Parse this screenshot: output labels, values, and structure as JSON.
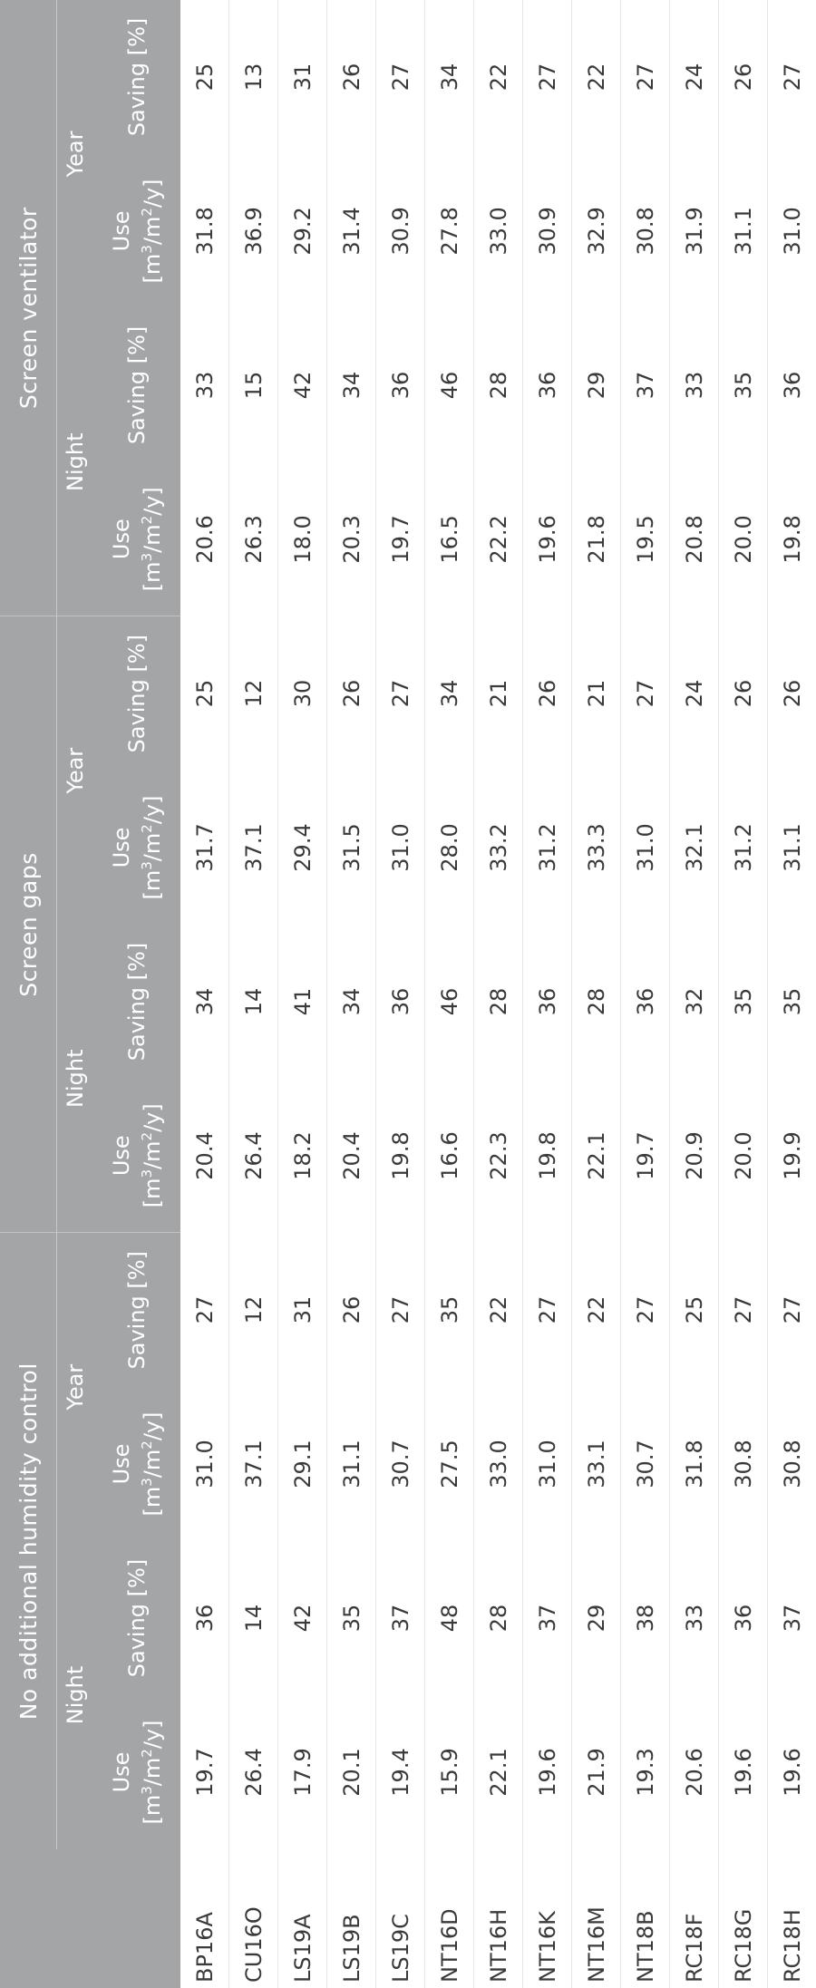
{
  "table": {
    "groups": [
      "No additional humidity control",
      "Screen gaps",
      "Screen ventilator"
    ],
    "periods": [
      "Night",
      "Year"
    ],
    "metric": {
      "use_label": "Use",
      "unit_open": "[m",
      "unit_sup1": "3",
      "unit_mid": "/m",
      "unit_sup2": "2",
      "unit_close": "/y]",
      "saving_label": "Saving [%]"
    },
    "rows": [
      {
        "site": "BP16A",
        "v": [
          "19.7",
          "36",
          "31.0",
          "27",
          "20.4",
          "34",
          "31.7",
          "25",
          "20.6",
          "33",
          "31.8",
          "25"
        ]
      },
      {
        "site": "CU16O",
        "v": [
          "26.4",
          "14",
          "37.1",
          "12",
          "26.4",
          "14",
          "37.1",
          "12",
          "26.3",
          "15",
          "36.9",
          "13"
        ]
      },
      {
        "site": "LS19A",
        "v": [
          "17.9",
          "42",
          "29.1",
          "31",
          "18.2",
          "41",
          "29.4",
          "30",
          "18.0",
          "42",
          "29.2",
          "31"
        ]
      },
      {
        "site": "LS19B",
        "v": [
          "20.1",
          "35",
          "31.1",
          "26",
          "20.4",
          "34",
          "31.5",
          "26",
          "20.3",
          "34",
          "31.4",
          "26"
        ]
      },
      {
        "site": "LS19C",
        "v": [
          "19.4",
          "37",
          "30.7",
          "27",
          "19.8",
          "36",
          "31.0",
          "27",
          "19.7",
          "36",
          "30.9",
          "27"
        ]
      },
      {
        "site": "NT16D",
        "v": [
          "15.9",
          "48",
          "27.5",
          "35",
          "16.6",
          "46",
          "28.0",
          "34",
          "16.5",
          "46",
          "27.8",
          "34"
        ]
      },
      {
        "site": "NT16H",
        "v": [
          "22.1",
          "28",
          "33.0",
          "22",
          "22.3",
          "28",
          "33.2",
          "21",
          "22.2",
          "28",
          "33.0",
          "22"
        ]
      },
      {
        "site": "NT16K",
        "v": [
          "19.6",
          "37",
          "31.0",
          "27",
          "19.8",
          "36",
          "31.2",
          "26",
          "19.6",
          "36",
          "30.9",
          "27"
        ]
      },
      {
        "site": "NT16M",
        "v": [
          "21.9",
          "29",
          "33.1",
          "22",
          "22.1",
          "28",
          "33.3",
          "21",
          "21.8",
          "29",
          "32.9",
          "22"
        ]
      },
      {
        "site": "NT18B",
        "v": [
          "19.3",
          "38",
          "30.7",
          "27",
          "19.7",
          "36",
          "31.0",
          "27",
          "19.5",
          "37",
          "30.8",
          "27"
        ]
      },
      {
        "site": "RC18F",
        "v": [
          "20.6",
          "33",
          "31.8",
          "25",
          "20.9",
          "32",
          "32.1",
          "24",
          "20.8",
          "33",
          "31.9",
          "24"
        ]
      },
      {
        "site": "RC18G",
        "v": [
          "19.6",
          "36",
          "30.8",
          "27",
          "20.0",
          "35",
          "31.2",
          "26",
          "20.0",
          "35",
          "31.1",
          "26"
        ]
      },
      {
        "site": "RC18H",
        "v": [
          "19.6",
          "37",
          "30.8",
          "27",
          "19.9",
          "35",
          "31.1",
          "26",
          "19.8",
          "36",
          "31.0",
          "27"
        ]
      }
    ]
  }
}
